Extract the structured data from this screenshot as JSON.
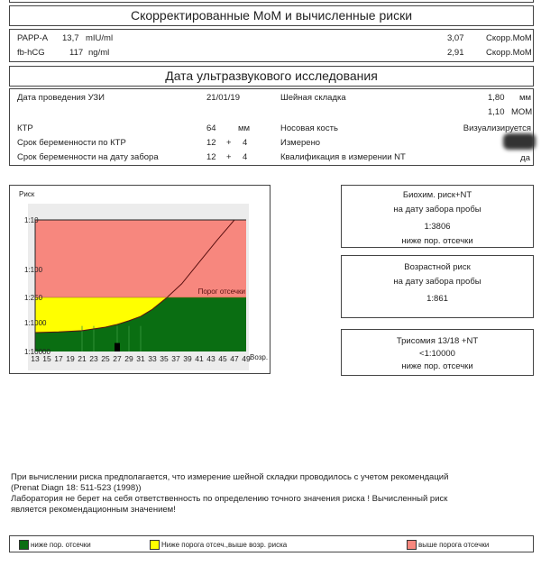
{
  "mom": {
    "title": "Скорректированные МоМ и вычисленные риски",
    "rows": [
      {
        "name": "PAPP-A",
        "value": "13,7",
        "unit": "mIU/ml",
        "mom": "3,07",
        "mom_label": "Скорр.МоМ"
      },
      {
        "name": "fb-hCG",
        "value": "117",
        "unit": "ng/ml",
        "mom": "2,91",
        "mom_label": "Скорр.МоМ"
      }
    ]
  },
  "us": {
    "title": "Дата ультразвукового исследования",
    "date_label": "Дата проведения УЗИ",
    "date": "21/01/19",
    "ktr_label": "КТР",
    "ktr": "64",
    "ktr_unit": "мм",
    "ga_ktr_label": "Срок беременности по КТР",
    "ga_ktr_w": "12",
    "plus": "+",
    "ga_ktr_d": "4",
    "ga_draw_label": "Срок беременности на дату забора",
    "ga_draw_w": "12",
    "ga_draw_d": "4",
    "nt_label": "Шейная складка",
    "nt": "1,80",
    "nt_unit": "мм",
    "nt_mom": "1,10",
    "nt_mom_unit": "МОМ",
    "nasal_label": "Носовая кость",
    "nasal": "Визуализируется",
    "measured_label": "Измерено",
    "qual_label": "Квалификация в измерении NT",
    "qual": "да"
  },
  "chart_data": {
    "type": "area",
    "ylabel": "Риск",
    "xlabel": "Возр.",
    "y_ticks": [
      "1:10",
      "1:100",
      "1:250",
      "1:1000",
      "1:10000"
    ],
    "y_tick_values": [
      10,
      100,
      250,
      1000,
      10000
    ],
    "x_ticks": [
      "13",
      "15",
      "17",
      "19",
      "21",
      "23",
      "25",
      "27",
      "29",
      "31",
      "33",
      "35",
      "37",
      "39",
      "41",
      "43",
      "45",
      "47",
      "49"
    ],
    "xlim": [
      13,
      49
    ],
    "ylim": [
      "1:10",
      "1:10000"
    ],
    "y_scale": "log (reversed)",
    "cutoff": 250,
    "cutoff_label": "Порог отсечки",
    "age_risk_curve": [
      [
        13,
        2200
      ],
      [
        17,
        2100
      ],
      [
        21,
        1900
      ],
      [
        25,
        1430
      ],
      [
        27,
        1150
      ],
      [
        29,
        900
      ],
      [
        31,
        710
      ],
      [
        33,
        480
      ],
      [
        35.5,
        250
      ],
      [
        38,
        160
      ],
      [
        41,
        71
      ],
      [
        44,
        26
      ],
      [
        47,
        10
      ]
    ],
    "patient": {
      "age": 27,
      "risk": 3806
    },
    "colors": {
      "below": "#0a6e12",
      "between": "#ffff00",
      "above": "#f7877e",
      "curve": "#5a1010"
    }
  },
  "risks": [
    {
      "title": "Биохим. риск+NT",
      "sub": "на дату забора пробы",
      "value": "1:3806",
      "status": "ниже пор. отсечки"
    },
    {
      "title": "Возрастной риск",
      "sub": "на дату забора пробы",
      "value": "1:861"
    },
    {
      "title": "Трисомия 13/18 +NT",
      "value": "<1:10000",
      "status": "ниже пор. отсечки"
    }
  ],
  "note": {
    "p1": "При вычислении риска предполагается, что измерение шейной складки проводилось с учетом рекомендаций",
    "p2": "(Prenat Diagn 18: 511-523 (1998))",
    "p3": "Лаборатория не берет на себя ответственность по определению точного значения риска ! Вычисленный риск",
    "p4": "является рекомендационным значением!"
  },
  "legend": [
    {
      "label": "ниже пор. отсечки",
      "color": "#0a6e12"
    },
    {
      "label": "Ниже порога отсеч.,выше возр. риска",
      "color": "#ffff00"
    },
    {
      "label": "выше порога отсечки",
      "color": "#f7877e"
    }
  ]
}
